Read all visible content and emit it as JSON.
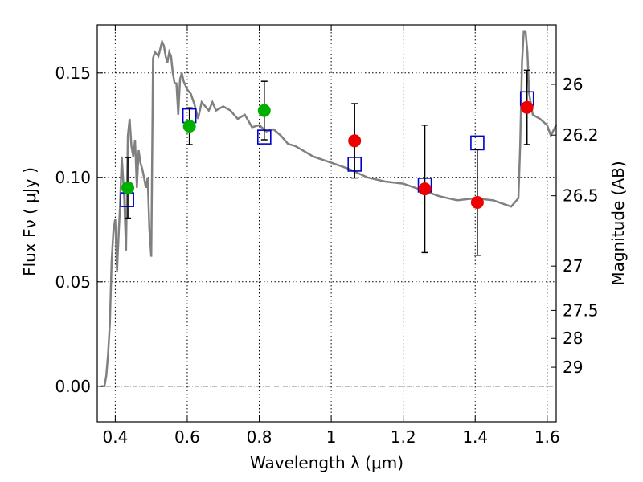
{
  "chart_data": {
    "type": "scatter",
    "xlabel": "Wavelength  λ (μm)",
    "ylabel": "Flux  Fν  ( μJy )",
    "y2label": "Magnitude (AB)",
    "xlim": [
      0.35,
      1.625
    ],
    "ylim": [
      -0.017,
      0.173
    ],
    "grid": true,
    "x_ticks": [
      0.4,
      0.6,
      0.8,
      1.0,
      1.2,
      1.4,
      1.6
    ],
    "x_tick_labels": [
      "0.4",
      "0.6",
      "0.8",
      "1",
      "1.2",
      "1.4",
      "1.6"
    ],
    "y_ticks": [
      0.0,
      0.05,
      0.1,
      0.15
    ],
    "y_tick_labels": [
      "0.00",
      "0.05",
      "0.10",
      "0.15"
    ],
    "y2_ticks": [
      26,
      26.2,
      26.5,
      27,
      27.5,
      28,
      29
    ],
    "y2_tick_labels": [
      "26",
      "26.2",
      "26.5",
      "27",
      "27.5",
      "28",
      "29"
    ],
    "colors": {
      "template": "#808080",
      "model_box": "#0000cc",
      "optical": "#00b000",
      "nir": "#ee0000",
      "errorbar": "#000000"
    },
    "template_spectrum": {
      "x": [
        0.36,
        0.37,
        0.375,
        0.38,
        0.385,
        0.39,
        0.395,
        0.4,
        0.405,
        0.41,
        0.413,
        0.418,
        0.425,
        0.43,
        0.435,
        0.44,
        0.445,
        0.45,
        0.455,
        0.46,
        0.465,
        0.47,
        0.475,
        0.48,
        0.485,
        0.49,
        0.495,
        0.5,
        0.505,
        0.51,
        0.52,
        0.53,
        0.535,
        0.54,
        0.545,
        0.55,
        0.555,
        0.56,
        0.565,
        0.57,
        0.575,
        0.58,
        0.585,
        0.59,
        0.6,
        0.61,
        0.62,
        0.63,
        0.64,
        0.65,
        0.66,
        0.67,
        0.68,
        0.7,
        0.72,
        0.74,
        0.76,
        0.78,
        0.8,
        0.82,
        0.84,
        0.86,
        0.88,
        0.9,
        0.95,
        1.0,
        1.05,
        1.1,
        1.15,
        1.2,
        1.25,
        1.3,
        1.35,
        1.4,
        1.45,
        1.5,
        1.51,
        1.52,
        1.525,
        1.53,
        1.535,
        1.54,
        1.545,
        1.55,
        1.56,
        1.58,
        1.6,
        1.61,
        1.625
      ],
      "y": [
        0.0,
        0.0,
        0.005,
        0.015,
        0.03,
        0.06,
        0.075,
        0.08,
        0.055,
        0.075,
        0.085,
        0.11,
        0.09,
        0.065,
        0.12,
        0.128,
        0.115,
        0.11,
        0.118,
        0.095,
        0.113,
        0.107,
        0.104,
        0.1,
        0.095,
        0.1,
        0.075,
        0.062,
        0.157,
        0.16,
        0.158,
        0.165,
        0.163,
        0.158,
        0.155,
        0.16,
        0.158,
        0.15,
        0.145,
        0.145,
        0.13,
        0.147,
        0.15,
        0.146,
        0.142,
        0.14,
        0.135,
        0.128,
        0.136,
        0.134,
        0.132,
        0.136,
        0.132,
        0.134,
        0.132,
        0.128,
        0.13,
        0.124,
        0.125,
        0.122,
        0.123,
        0.12,
        0.116,
        0.115,
        0.11,
        0.107,
        0.104,
        0.1,
        0.098,
        0.097,
        0.094,
        0.091,
        0.089,
        0.09,
        0.089,
        0.086,
        0.088,
        0.09,
        0.115,
        0.155,
        0.17,
        0.17,
        0.16,
        0.14,
        0.13,
        0.128,
        0.125,
        0.12,
        0.125
      ]
    },
    "model_boxes": [
      {
        "x": 0.433,
        "y": 0.0893
      },
      {
        "x": 0.606,
        "y": 0.1295
      },
      {
        "x": 0.814,
        "y": 0.1193
      },
      {
        "x": 1.065,
        "y": 0.1063
      },
      {
        "x": 1.26,
        "y": 0.0963
      },
      {
        "x": 1.406,
        "y": 0.1165
      },
      {
        "x": 1.544,
        "y": 0.1377
      }
    ],
    "series": [
      {
        "color_key": "optical",
        "points": [
          {
            "x": 0.435,
            "y": 0.095,
            "yerr": 0.0145
          },
          {
            "x": 0.606,
            "y": 0.1245,
            "yerr": 0.0088
          },
          {
            "x": 0.814,
            "y": 0.132,
            "yerr": 0.014
          }
        ]
      },
      {
        "color_key": "nir",
        "points": [
          {
            "x": 1.065,
            "y": 0.1175,
            "yerr": 0.0178
          },
          {
            "x": 1.26,
            "y": 0.0945,
            "yerr": 0.0305
          },
          {
            "x": 1.406,
            "y": 0.088,
            "yerr": 0.0253
          },
          {
            "x": 1.544,
            "y": 0.1335,
            "yerr": 0.0178
          }
        ]
      }
    ]
  }
}
